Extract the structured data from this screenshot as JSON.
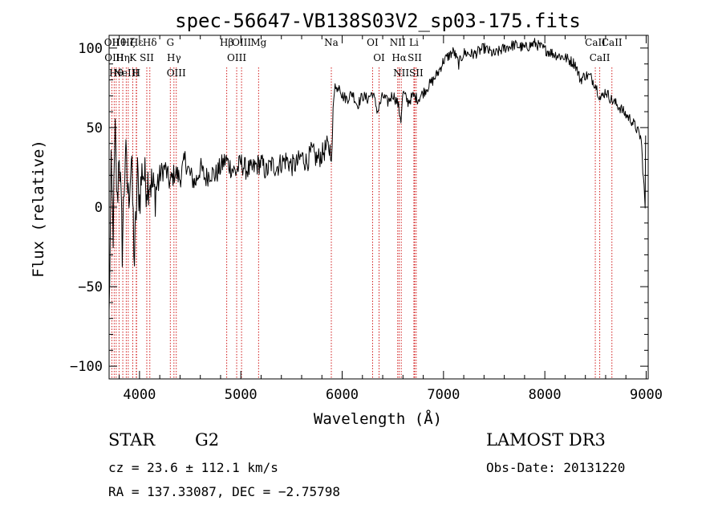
{
  "chart_data": {
    "type": "line",
    "title": "spec-56647-VB138S03V2_sp03-175.fits",
    "xlabel": "Wavelength (Å)",
    "ylabel": "Flux (relative)",
    "xlim": [
      3700,
      9020
    ],
    "ylim": [
      -108,
      108
    ],
    "xticks": [
      4000,
      5000,
      6000,
      7000,
      8000,
      9000
    ],
    "yticks": [
      -100,
      -50,
      0,
      50,
      100
    ],
    "series": [
      {
        "name": "flux",
        "x": [
          3700,
          3720,
          3740,
          3760,
          3780,
          3800,
          3830,
          3860,
          3890,
          3920,
          3950,
          3980,
          4000,
          4030,
          4060,
          4100,
          4150,
          4200,
          4250,
          4300,
          4350,
          4400,
          4450,
          4500,
          4550,
          4600,
          4650,
          4700,
          4750,
          4800,
          4850,
          4900,
          4950,
          5000,
          5050,
          5100,
          5150,
          5200,
          5250,
          5300,
          5350,
          5400,
          5450,
          5500,
          5550,
          5600,
          5650,
          5700,
          5750,
          5800,
          5850,
          5880,
          5900,
          5910,
          5930,
          5950,
          5970,
          6000,
          6050,
          6100,
          6150,
          6200,
          6250,
          6300,
          6350,
          6400,
          6450,
          6500,
          6550,
          6580,
          6600,
          6650,
          6700,
          6750,
          6800,
          6850,
          6900,
          6950,
          7000,
          7050,
          7100,
          7150,
          7200,
          7300,
          7400,
          7500,
          7600,
          7700,
          7800,
          7900,
          8000,
          8100,
          8200,
          8300,
          8350,
          8400,
          8450,
          8500,
          8550,
          8600,
          8650,
          8700,
          8750,
          8800,
          8850,
          8900,
          8950,
          8990,
          8995
        ],
        "y": [
          -70,
          20,
          -15,
          45,
          0,
          38,
          -25,
          35,
          5,
          30,
          -35,
          20,
          5,
          25,
          15,
          18,
          8,
          20,
          25,
          15,
          22,
          18,
          30,
          20,
          15,
          25,
          18,
          22,
          20,
          25,
          30,
          25,
          22,
          28,
          24,
          23,
          26,
          28,
          22,
          27,
          25,
          28,
          30,
          26,
          27,
          32,
          28,
          35,
          30,
          33,
          38,
          36,
          35,
          60,
          80,
          72,
          78,
          70,
          68,
          72,
          64,
          70,
          68,
          72,
          60,
          70,
          66,
          71,
          65,
          55,
          72,
          66,
          70,
          68,
          72,
          76,
          80,
          85,
          92,
          95,
          98,
          90,
          97,
          96,
          100,
          96,
          100,
          102,
          100,
          103,
          99,
          96,
          94,
          90,
          80,
          83,
          82,
          77,
          68,
          73,
          68,
          65,
          62,
          58,
          55,
          50,
          43,
          0,
          45
        ],
        "color": "#000000"
      }
    ],
    "line_markers": [
      {
        "wavelength": 3727,
        "label": "OII"
      },
      {
        "wavelength": 3750,
        "label": "OIII"
      },
      {
        "wavelength": 3770,
        "label": "Hθ"
      },
      {
        "wavelength": 3798,
        "label": "Hθ"
      },
      {
        "wavelength": 3835,
        "label": "Hη"
      },
      {
        "wavelength": 3869,
        "label": "NeIII"
      },
      {
        "wavelength": 3889,
        "label": "Hζ"
      },
      {
        "wavelength": 3934,
        "label": "K"
      },
      {
        "wavelength": 3968,
        "label": "H"
      },
      {
        "wavelength": 3971,
        "label": "Hε"
      },
      {
        "wavelength": 4072,
        "label": "SII"
      },
      {
        "wavelength": 4102,
        "label": "Hδ"
      },
      {
        "wavelength": 4304,
        "label": "G"
      },
      {
        "wavelength": 4340,
        "label": "Hγ"
      },
      {
        "wavelength": 4363,
        "label": "OIII"
      },
      {
        "wavelength": 4861,
        "label": "Hβ"
      },
      {
        "wavelength": 4959,
        "label": "OIII"
      },
      {
        "wavelength": 5007,
        "label": "OIII"
      },
      {
        "wavelength": 5175,
        "label": "Mg"
      },
      {
        "wavelength": 5893,
        "label": "Na"
      },
      {
        "wavelength": 6300,
        "label": "OI"
      },
      {
        "wavelength": 6364,
        "label": "OI"
      },
      {
        "wavelength": 6548,
        "label": "NII"
      },
      {
        "wavelength": 6563,
        "label": "Hα"
      },
      {
        "wavelength": 6583,
        "label": "NII"
      },
      {
        "wavelength": 6708,
        "label": "Li"
      },
      {
        "wavelength": 6716,
        "label": "SII"
      },
      {
        "wavelength": 6731,
        "label": "SII"
      },
      {
        "wavelength": 8498,
        "label": "CaII"
      },
      {
        "wavelength": 8542,
        "label": "CaII"
      },
      {
        "wavelength": 8662,
        "label": "CaII"
      }
    ],
    "annotation_color": "#cc0000"
  },
  "info": {
    "object_type": "STAR",
    "subclass": "G2",
    "survey": "LAMOST DR3",
    "cz": "cz = 23.6 ± 112.1 km/s",
    "obs_date": "Obs-Date: 20131220",
    "ra_dec": "RA = 137.33087, DEC =  −2.75798"
  }
}
